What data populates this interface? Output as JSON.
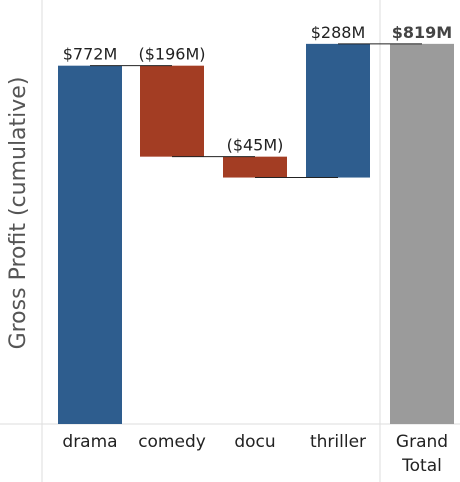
{
  "chart_data": {
    "type": "waterfall",
    "ylabel": "Gross Profit (cumulative)",
    "categories": [
      "drama",
      "comedy",
      "docu",
      "thriller"
    ],
    "values": [
      772,
      -196,
      -45,
      288
    ],
    "value_labels": [
      "$772M",
      "($196M)",
      "($45M)",
      "$288M"
    ],
    "total": {
      "label_lines": [
        "Grand",
        "Total"
      ],
      "value": 819,
      "value_label": "$819M"
    },
    "colors": {
      "positive": "#2e5d8e",
      "negative": "#a33d23",
      "total": "#9b9b9b",
      "connector": "#222222",
      "separator": "#dddddd"
    },
    "grid": false
  }
}
